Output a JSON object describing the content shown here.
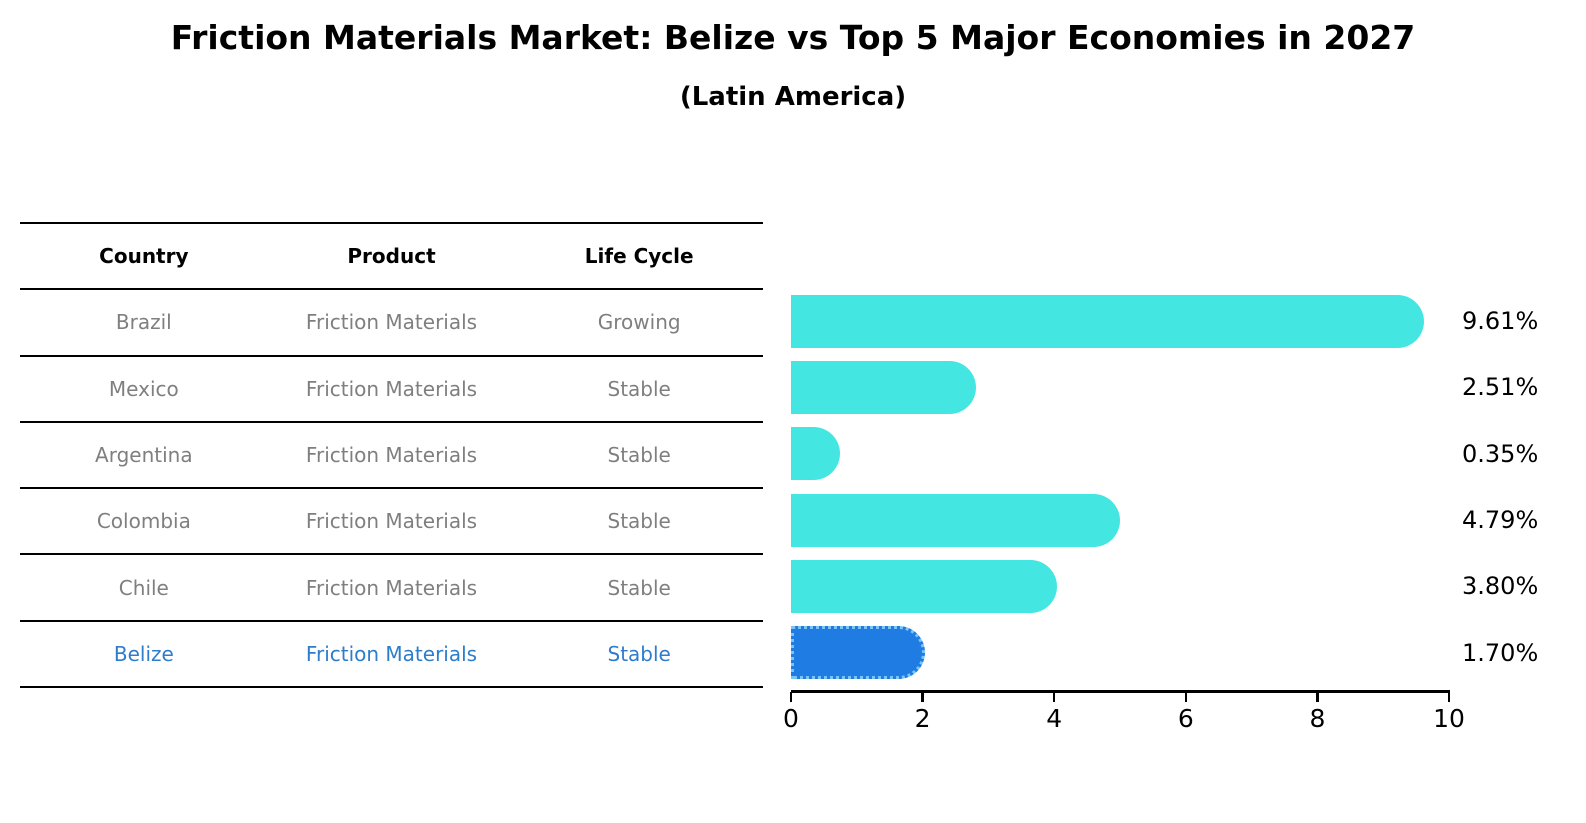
{
  "title": "Friction Materials Market: Belize vs Top 5 Major Economies in 2027",
  "subtitle": "(Latin America)",
  "table": {
    "headers": [
      "Country",
      "Product",
      "Life Cycle"
    ],
    "rows": [
      {
        "country": "Brazil",
        "product": "Friction Materials",
        "life_cycle": "Growing",
        "highlighted": false
      },
      {
        "country": "Mexico",
        "product": "Friction Materials",
        "life_cycle": "Stable",
        "highlighted": false
      },
      {
        "country": "Argentina",
        "product": "Friction Materials",
        "life_cycle": "Stable",
        "highlighted": false
      },
      {
        "country": "Colombia",
        "product": "Friction Materials",
        "life_cycle": "Stable",
        "highlighted": false
      },
      {
        "country": "Chile",
        "product": "Friction Materials",
        "life_cycle": "Stable",
        "highlighted": false
      },
      {
        "country": "Belize",
        "product": "Friction Materials",
        "life_cycle": "Stable",
        "highlighted": true
      }
    ]
  },
  "chart_data": {
    "type": "bar",
    "orientation": "horizontal",
    "title": "Friction Materials Market: Belize vs Top 5 Major Economies in 2027",
    "subtitle": "(Latin America)",
    "categories": [
      "Brazil",
      "Mexico",
      "Argentina",
      "Colombia",
      "Chile",
      "Belize"
    ],
    "values": [
      9.61,
      2.51,
      0.35,
      4.79,
      3.8,
      1.7
    ],
    "value_labels": [
      "9.61%",
      "2.51%",
      "0.35%",
      "4.79%",
      "3.80%",
      "1.70%"
    ],
    "highlight_category": "Belize",
    "xlabel": "",
    "ylabel": "",
    "xlim": [
      0,
      10
    ],
    "xticks": [
      0,
      2,
      4,
      6,
      8,
      10
    ],
    "grid": false,
    "legend": false
  },
  "colors": {
    "bar_default": "#44E6E1",
    "bar_highlight": "#1E7CE3",
    "bar_highlight_border": "#7CC4F5",
    "highlight_text": "#2E7DCC",
    "table_text": "#7F7F7F",
    "header_text": "#000000",
    "axis_text": "#000000"
  }
}
